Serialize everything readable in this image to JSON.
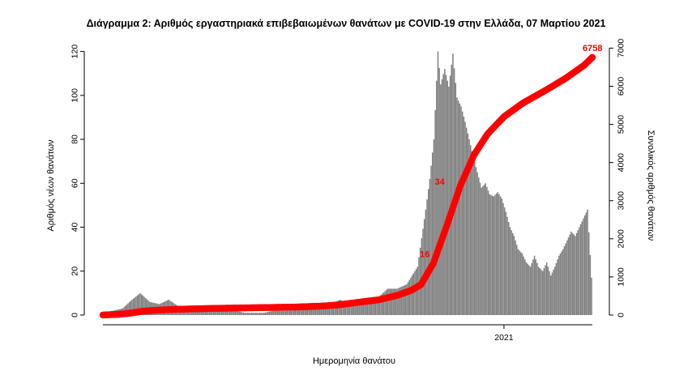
{
  "chart_data": {
    "type": "bar",
    "title": "Διάγραμμα 2: Αριθμός εργαστηριακά επιβεβαιωμένων θανάτων με COVID-19 στην Ελλάδα, 07 Μαρτίου 2021",
    "xlabel": "Ημερομηνία θανάτου",
    "ylabel_left": "Αριθμός νέων θανάτων",
    "ylabel_right": "Συνολικός αριθμός θανάτων",
    "x_range": [
      "2020-03-12",
      "2021-03-07"
    ],
    "x_ticks": [
      {
        "date": "2021-01-01",
        "label": "2021"
      }
    ],
    "y_left_range": [
      0,
      125
    ],
    "y_left_ticks": [
      0,
      20,
      40,
      60,
      80,
      100,
      120
    ],
    "y_right_range": [
      0,
      7200
    ],
    "y_right_ticks": [
      0,
      1000,
      2000,
      3000,
      4000,
      5000,
      6000,
      7000
    ],
    "grid": false,
    "series": [
      {
        "axis": "left",
        "mark": "bar",
        "color": "#7f7f7f",
        "points": [
          {
            "x": "2020-03-12",
            "y": 1
          },
          {
            "x": "2020-03-26",
            "y": 3
          },
          {
            "x": "2020-04-02",
            "y": 7
          },
          {
            "x": "2020-04-08",
            "y": 10
          },
          {
            "x": "2020-04-15",
            "y": 6
          },
          {
            "x": "2020-04-22",
            "y": 5
          },
          {
            "x": "2020-04-29",
            "y": 7
          },
          {
            "x": "2020-05-06",
            "y": 4
          },
          {
            "x": "2020-05-13",
            "y": 3
          },
          {
            "x": "2020-05-20",
            "y": 3
          },
          {
            "x": "2020-05-27",
            "y": 2
          },
          {
            "x": "2020-06-03",
            "y": 2
          },
          {
            "x": "2020-06-10",
            "y": 2
          },
          {
            "x": "2020-06-17",
            "y": 2
          },
          {
            "x": "2020-06-24",
            "y": 1
          },
          {
            "x": "2020-07-01",
            "y": 1
          },
          {
            "x": "2020-07-08",
            "y": 1
          },
          {
            "x": "2020-07-15",
            "y": 2
          },
          {
            "x": "2020-07-22",
            "y": 2
          },
          {
            "x": "2020-07-29",
            "y": 2
          },
          {
            "x": "2020-08-05",
            "y": 3
          },
          {
            "x": "2020-08-12",
            "y": 4
          },
          {
            "x": "2020-08-19",
            "y": 3
          },
          {
            "x": "2020-08-26",
            "y": 5
          },
          {
            "x": "2020-09-02",
            "y": 7
          },
          {
            "x": "2020-09-09",
            "y": 5
          },
          {
            "x": "2020-09-16",
            "y": 6
          },
          {
            "x": "2020-09-23",
            "y": 8
          },
          {
            "x": "2020-09-30",
            "y": 8
          },
          {
            "x": "2020-10-07",
            "y": 12
          },
          {
            "x": "2020-10-14",
            "y": 12
          },
          {
            "x": "2020-10-21",
            "y": 14
          },
          {
            "x": "2020-10-25",
            "y": 18
          },
          {
            "x": "2020-10-29",
            "y": 22
          },
          {
            "x": "2020-11-01",
            "y": 35
          },
          {
            "x": "2020-11-04",
            "y": 48
          },
          {
            "x": "2020-11-07",
            "y": 62
          },
          {
            "x": "2020-11-10",
            "y": 80
          },
          {
            "x": "2020-11-13",
            "y": 120
          },
          {
            "x": "2020-11-15",
            "y": 105
          },
          {
            "x": "2020-11-18",
            "y": 112
          },
          {
            "x": "2020-11-21",
            "y": 104
          },
          {
            "x": "2020-11-24",
            "y": 119
          },
          {
            "x": "2020-11-27",
            "y": 99
          },
          {
            "x": "2020-11-30",
            "y": 95
          },
          {
            "x": "2020-12-03",
            "y": 88
          },
          {
            "x": "2020-12-06",
            "y": 80
          },
          {
            "x": "2020-12-09",
            "y": 72
          },
          {
            "x": "2020-12-12",
            "y": 65
          },
          {
            "x": "2020-12-15",
            "y": 58
          },
          {
            "x": "2020-12-18",
            "y": 60
          },
          {
            "x": "2020-12-21",
            "y": 55
          },
          {
            "x": "2020-12-24",
            "y": 54
          },
          {
            "x": "2020-12-27",
            "y": 56
          },
          {
            "x": "2020-12-30",
            "y": 53
          },
          {
            "x": "2021-01-02",
            "y": 47
          },
          {
            "x": "2021-01-05",
            "y": 40
          },
          {
            "x": "2021-01-08",
            "y": 36
          },
          {
            "x": "2021-01-11",
            "y": 30
          },
          {
            "x": "2021-01-14",
            "y": 28
          },
          {
            "x": "2021-01-17",
            "y": 24
          },
          {
            "x": "2021-01-20",
            "y": 22
          },
          {
            "x": "2021-01-23",
            "y": 27
          },
          {
            "x": "2021-01-26",
            "y": 22
          },
          {
            "x": "2021-01-29",
            "y": 20
          },
          {
            "x": "2021-02-01",
            "y": 24
          },
          {
            "x": "2021-02-04",
            "y": 18
          },
          {
            "x": "2021-02-07",
            "y": 22
          },
          {
            "x": "2021-02-10",
            "y": 27
          },
          {
            "x": "2021-02-13",
            "y": 30
          },
          {
            "x": "2021-02-16",
            "y": 34
          },
          {
            "x": "2021-02-19",
            "y": 38
          },
          {
            "x": "2021-02-22",
            "y": 36
          },
          {
            "x": "2021-02-25",
            "y": 40
          },
          {
            "x": "2021-02-28",
            "y": 44
          },
          {
            "x": "2021-03-03",
            "y": 48
          },
          {
            "x": "2021-03-06",
            "y": 17
          }
        ]
      },
      {
        "axis": "right",
        "mark": "line",
        "color": "#ff0000",
        "points": [
          {
            "x": "2020-03-12",
            "y": 1
          },
          {
            "x": "2020-03-24",
            "y": 20
          },
          {
            "x": "2020-04-01",
            "y": 50
          },
          {
            "x": "2020-04-10",
            "y": 100
          },
          {
            "x": "2020-04-20",
            "y": 125
          },
          {
            "x": "2020-05-01",
            "y": 145
          },
          {
            "x": "2020-05-15",
            "y": 160
          },
          {
            "x": "2020-06-01",
            "y": 175
          },
          {
            "x": "2020-07-01",
            "y": 192
          },
          {
            "x": "2020-08-01",
            "y": 210
          },
          {
            "x": "2020-08-20",
            "y": 235
          },
          {
            "x": "2020-09-01",
            "y": 265
          },
          {
            "x": "2020-09-15",
            "y": 330
          },
          {
            "x": "2020-10-01",
            "y": 400
          },
          {
            "x": "2020-10-15",
            "y": 520
          },
          {
            "x": "2020-10-25",
            "y": 650
          },
          {
            "x": "2020-11-01",
            "y": 800
          },
          {
            "x": "2020-11-10",
            "y": 1350
          },
          {
            "x": "2020-11-20",
            "y": 2350
          },
          {
            "x": "2020-11-30",
            "y": 3400
          },
          {
            "x": "2020-12-10",
            "y": 4200
          },
          {
            "x": "2020-12-20",
            "y": 4750
          },
          {
            "x": "2021-01-01",
            "y": 5200
          },
          {
            "x": "2021-01-15",
            "y": 5560
          },
          {
            "x": "2021-02-01",
            "y": 5900
          },
          {
            "x": "2021-02-15",
            "y": 6200
          },
          {
            "x": "2021-03-01",
            "y": 6550
          },
          {
            "x": "2021-03-07",
            "y": 6758
          }
        ]
      }
    ],
    "annotations": [
      {
        "x": "2020-11-11",
        "y": 1600,
        "text": "16"
      },
      {
        "x": "2020-11-22",
        "y": 3500,
        "text": "34"
      },
      {
        "x": "2021-03-07",
        "y": 6758,
        "text": "6758"
      }
    ]
  }
}
